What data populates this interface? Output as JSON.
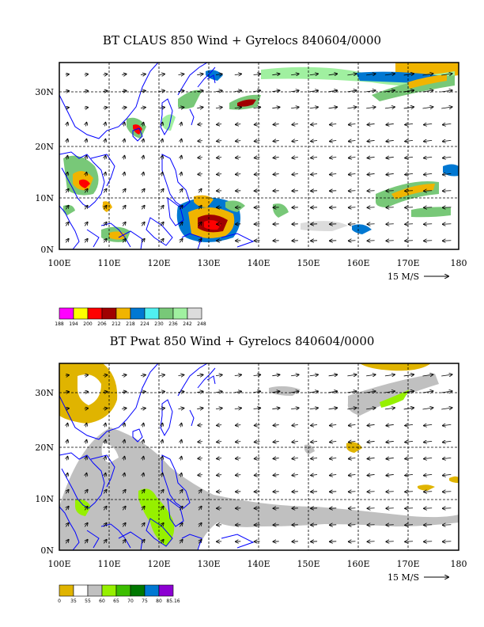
{
  "panel1": {
    "title": "BT CLAUS 850 Wind + Gyrelocs 840604/0000",
    "xticks": [
      "100E",
      "110E",
      "120E",
      "130E",
      "140E",
      "150E",
      "160E",
      "170E",
      "180"
    ],
    "yticks": [
      "30N",
      "20N",
      "10N",
      "0N"
    ],
    "vector_ref": "15 M/S",
    "colorbar": {
      "labels": [
        "188",
        "194",
        "200",
        "206",
        "212",
        "218",
        "224",
        "230",
        "236",
        "242",
        "248"
      ],
      "colors": [
        "#ff00ff",
        "#ffff00",
        "#ff0000",
        "#a00000",
        "#f0b400",
        "#0078d2",
        "#50f0f0",
        "#78c878",
        "#a0f0a0",
        "#dcdcdc"
      ]
    }
  },
  "panel2": {
    "title": "BT Pwat 850 Wind + Gyrelocs 840604/0000",
    "xticks": [
      "100E",
      "110E",
      "120E",
      "130E",
      "140E",
      "150E",
      "160E",
      "170E",
      "180"
    ],
    "yticks": [
      "30N",
      "20N",
      "10N",
      "0N"
    ],
    "vector_ref": "15 M/S",
    "colorbar": {
      "labels": [
        "0",
        "35",
        "55",
        "60",
        "65",
        "70",
        "75",
        "80",
        "85.16"
      ],
      "colors": [
        "#e0b400",
        "#ffffff",
        "#c0c0c0",
        "#96f000",
        "#3cbe00",
        "#007800",
        "#0078d2",
        "#8c00d2"
      ]
    }
  },
  "colors": {
    "coast": "#0000ff",
    "grid": "#000000"
  }
}
